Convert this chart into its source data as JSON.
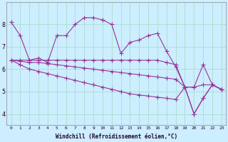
{
  "xlabel": "Windchill (Refroidissement éolien,°C)",
  "background_color": "#cceeff",
  "grid_color": "#aaddcc",
  "line_color": "#993399",
  "ylim": [
    3.5,
    9.0
  ],
  "xlim": [
    -0.5,
    23.5
  ],
  "yticks": [
    4,
    5,
    6,
    7,
    8
  ],
  "xticks": [
    0,
    1,
    2,
    3,
    4,
    5,
    6,
    7,
    8,
    9,
    10,
    11,
    12,
    13,
    14,
    15,
    16,
    17,
    18,
    19,
    20,
    21,
    22,
    23
  ],
  "series": [
    [
      8.1,
      7.5,
      6.4,
      6.5,
      6.3,
      7.5,
      7.5,
      8.0,
      8.3,
      8.3,
      8.2,
      8.0,
      6.7,
      7.2,
      7.3,
      7.5,
      7.6,
      6.8,
      6.1,
      5.2,
      4.0,
      4.7,
      5.3,
      5.1
    ],
    [
      6.4,
      6.4,
      6.4,
      6.4,
      6.4,
      6.4,
      6.4,
      6.4,
      6.4,
      6.4,
      6.4,
      6.4,
      6.4,
      6.4,
      6.4,
      6.4,
      6.4,
      6.3,
      6.2,
      5.2,
      5.2,
      6.2,
      5.3,
      5.1
    ],
    [
      6.4,
      6.35,
      6.3,
      6.3,
      6.25,
      6.2,
      6.15,
      6.1,
      6.05,
      6.0,
      5.95,
      5.9,
      5.85,
      5.8,
      5.75,
      5.7,
      5.65,
      5.6,
      5.55,
      5.2,
      5.2,
      5.3,
      5.3,
      5.1
    ],
    [
      6.4,
      6.2,
      6.0,
      5.9,
      5.8,
      5.7,
      5.6,
      5.5,
      5.4,
      5.3,
      5.2,
      5.1,
      5.0,
      4.9,
      4.85,
      4.8,
      4.75,
      4.7,
      4.65,
      5.2,
      4.0,
      4.7,
      5.3,
      5.1
    ]
  ],
  "marker": "+",
  "markersize": 4,
  "linewidth": 0.8
}
